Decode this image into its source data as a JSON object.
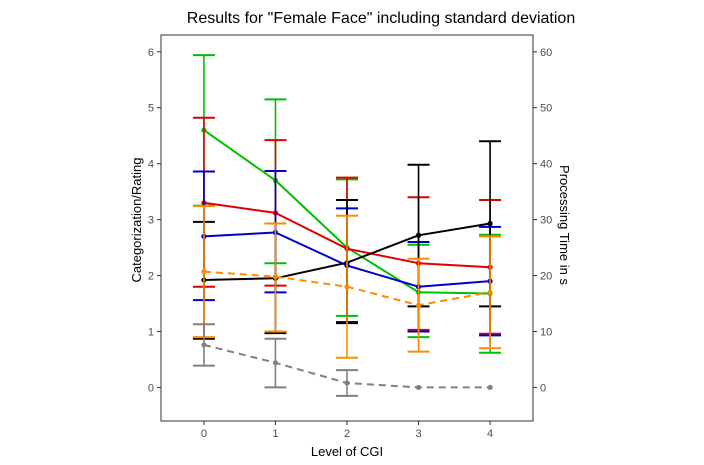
{
  "chart_data": {
    "type": "line",
    "title": "Results for \"Female Face\" including standard deviation",
    "xlabel": "Level of CGI",
    "ylabel_left": "Categorization/Rating",
    "ylabel_right": "Processing Time in s",
    "x": [
      0,
      1,
      2,
      3,
      4
    ],
    "xlim": [
      -0.6,
      4.6
    ],
    "ylim_left": [
      -0.6,
      6.3
    ],
    "ylim_right": [
      -6,
      63
    ],
    "left_ticks": [
      0,
      1,
      2,
      3,
      4,
      5,
      6
    ],
    "right_ticks": [
      0,
      10,
      20,
      30,
      40,
      50,
      60
    ],
    "grid": false,
    "series": [
      {
        "color": "#00c000",
        "dashed": false,
        "axis": "left",
        "values": [
          4.6,
          3.7,
          2.5,
          1.7,
          1.68
        ],
        "lower": [
          3.25,
          2.22,
          1.28,
          0.9,
          0.62
        ],
        "upper": [
          5.94,
          5.15,
          3.72,
          2.55,
          2.73
        ]
      },
      {
        "color": "#e00000",
        "dashed": false,
        "axis": "left",
        "values": [
          3.3,
          3.12,
          2.48,
          2.22,
          2.15
        ],
        "lower": [
          1.8,
          1.82,
          1.17,
          1.03,
          0.96
        ],
        "upper": [
          4.82,
          4.42,
          3.75,
          3.4,
          3.35
        ]
      },
      {
        "color": "#0000cc",
        "dashed": false,
        "axis": "left",
        "values": [
          2.7,
          2.77,
          2.18,
          1.8,
          1.9
        ],
        "lower": [
          1.56,
          1.7,
          1.17,
          1.0,
          0.93
        ],
        "upper": [
          3.86,
          3.87,
          3.2,
          2.6,
          2.87
        ]
      },
      {
        "color": "#000000",
        "dashed": false,
        "axis": "left",
        "values": [
          1.92,
          1.95,
          2.23,
          2.72,
          2.93
        ],
        "lower": [
          0.87,
          0.97,
          1.15,
          1.45,
          1.45
        ],
        "upper": [
          2.96,
          2.93,
          3.35,
          3.98,
          4.4
        ]
      },
      {
        "color": "#ff8c00",
        "dashed": true,
        "axis": "left",
        "values": [
          2.07,
          1.98,
          1.8,
          1.47,
          1.7
        ],
        "lower": [
          0.9,
          1.0,
          0.53,
          0.64,
          0.7
        ],
        "upper": [
          3.24,
          2.93,
          3.07,
          2.3,
          2.7
        ]
      },
      {
        "color": "#808080",
        "dashed": true,
        "axis": "left",
        "values": [
          0.76,
          0.44,
          0.08,
          0.0,
          0.0
        ],
        "lower": [
          0.39,
          0.0,
          -0.15,
          0.0,
          0.0
        ],
        "upper": [
          1.13,
          0.87,
          0.31,
          0.0,
          0.0
        ]
      }
    ]
  }
}
